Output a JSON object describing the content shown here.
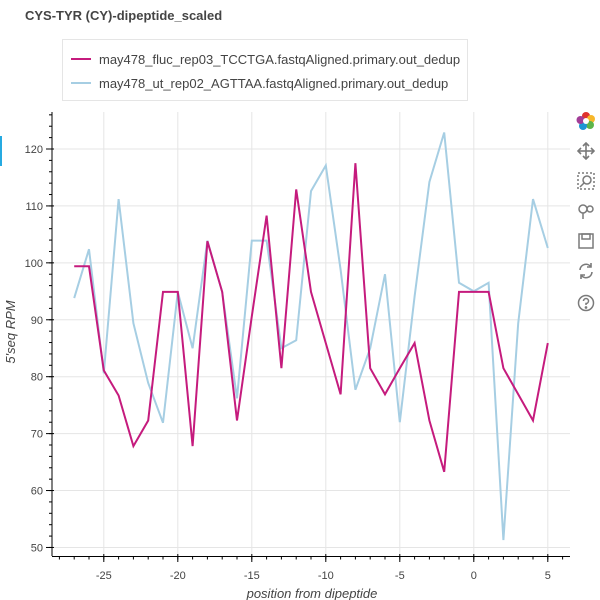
{
  "chart_data": {
    "type": "line",
    "title": "CYS-TYR (CY)-dipeptide_scaled",
    "xlabel": "position from dipeptide",
    "ylabel": "5'seq RPM",
    "xlim": [
      -28.5,
      6.5
    ],
    "ylim": [
      48.5,
      126.5
    ],
    "xticks": [
      -25,
      -20,
      -15,
      -10,
      -5,
      0,
      5
    ],
    "yticks": [
      50,
      60,
      70,
      80,
      90,
      100,
      110,
      120
    ],
    "grid": true,
    "legend_position": "top-left",
    "x": [
      -27,
      -26,
      -25,
      -24,
      -23,
      -22,
      -21,
      -20,
      -19,
      -18,
      -17,
      -16,
      -15,
      -14,
      -13,
      -12,
      -11,
      -10,
      -9,
      -8,
      -7,
      -6,
      -5,
      -4,
      -3,
      -2,
      -1,
      0,
      1,
      2,
      3,
      4,
      5
    ],
    "series": [
      {
        "name": "may478_fluc_rep03_TCCTGA.fastqAligned.primary.out_dedup",
        "color": "#c51b7d",
        "values": [
          99.4,
          99.4,
          81.1,
          76.7,
          67.8,
          72.3,
          94.9,
          94.9,
          67.8,
          103.8,
          94.9,
          72.3,
          90.6,
          108.3,
          81.5,
          112.9,
          94.9,
          85.9,
          76.9,
          117.5,
          81.5,
          76.9,
          81.5,
          85.9,
          72.3,
          63.3,
          94.9,
          94.9,
          94.9,
          81.5,
          76.9,
          72.3,
          85.9
        ]
      },
      {
        "name": "may478_ut_rep02_AGTTAA.fastqAligned.primary.out_dedup",
        "color": "#a6cee3",
        "values": [
          93.8,
          102.4,
          80.6,
          111.2,
          89.4,
          78.9,
          71.9,
          94.9,
          85.0,
          103.9,
          94.9,
          76.2,
          103.9,
          103.9,
          85.0,
          86.4,
          112.6,
          117.1,
          98.8,
          77.7,
          85.0,
          98.0,
          72.0,
          94.1,
          114.2,
          122.9,
          96.5,
          95.0,
          96.5,
          51.3,
          89.4,
          111.2,
          102.6
        ]
      }
    ]
  },
  "toolbar": [
    {
      "icon": "bokeh-logo-icon"
    },
    {
      "icon": "pan-icon"
    },
    {
      "icon": "box-zoom-icon"
    },
    {
      "icon": "wheel-zoom-icon"
    },
    {
      "icon": "save-icon"
    },
    {
      "icon": "reset-icon"
    },
    {
      "icon": "help-icon"
    }
  ]
}
